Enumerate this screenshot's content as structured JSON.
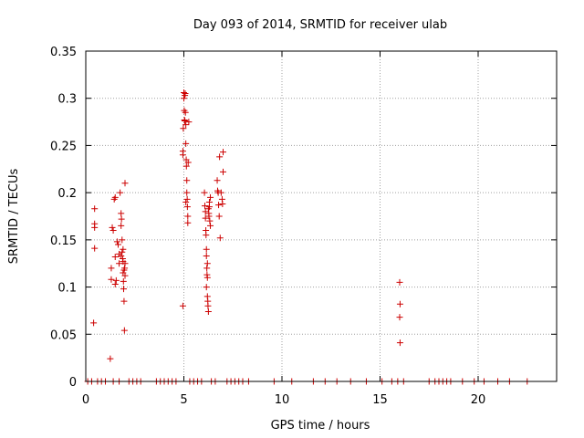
{
  "chart_data": {
    "type": "scatter",
    "title": "Day 093 of 2014, SRMTID for receiver ulab",
    "xlabel": "GPS time / hours",
    "ylabel": "SRMTID / TECUs",
    "xlim": [
      0,
      24
    ],
    "ylim": [
      0,
      0.35
    ],
    "grid": true,
    "marker": "+",
    "colors": {
      "points": "#cc0000",
      "grid": "#a0a0a0",
      "frame": "#000000"
    },
    "x_ticks": [
      {
        "value": 0,
        "label": "0"
      },
      {
        "value": 5,
        "label": "5"
      },
      {
        "value": 10,
        "label": "10"
      },
      {
        "value": 15,
        "label": "15"
      },
      {
        "value": 20,
        "label": "20"
      }
    ],
    "y_ticks": [
      {
        "value": 0,
        "label": "0"
      },
      {
        "value": 0.05,
        "label": "0.05"
      },
      {
        "value": 0.1,
        "label": "0.1"
      },
      {
        "value": 0.15,
        "label": "0.15"
      },
      {
        "value": 0.2,
        "label": "0.2"
      },
      {
        "value": 0.25,
        "label": "0.25"
      },
      {
        "value": 0.3,
        "label": "0.3"
      },
      {
        "value": 0.35,
        "label": "0.35"
      }
    ],
    "points": [
      [
        0.45,
        0.183
      ],
      [
        0.45,
        0.167
      ],
      [
        0.45,
        0.163
      ],
      [
        0.45,
        0.141
      ],
      [
        0.4,
        0.062
      ],
      [
        1.25,
        0.024
      ],
      [
        1.3,
        0.108
      ],
      [
        1.3,
        0.12
      ],
      [
        1.35,
        0.163
      ],
      [
        1.4,
        0.16
      ],
      [
        1.45,
        0.193
      ],
      [
        1.5,
        0.195
      ],
      [
        1.5,
        0.132
      ],
      [
        1.5,
        0.103
      ],
      [
        1.55,
        0.107
      ],
      [
        1.6,
        0.148
      ],
      [
        1.65,
        0.145
      ],
      [
        1.7,
        0.135
      ],
      [
        1.7,
        0.125
      ],
      [
        1.75,
        0.2
      ],
      [
        1.8,
        0.178
      ],
      [
        1.8,
        0.165
      ],
      [
        1.82,
        0.172
      ],
      [
        1.85,
        0.15
      ],
      [
        1.85,
        0.137
      ],
      [
        1.88,
        0.13
      ],
      [
        1.9,
        0.127
      ],
      [
        1.9,
        0.115
      ],
      [
        1.92,
        0.106
      ],
      [
        1.93,
        0.098
      ],
      [
        1.95,
        0.085
      ],
      [
        1.97,
        0.054
      ],
      [
        1.98,
        0.12
      ],
      [
        2.0,
        0.21
      ],
      [
        2.0,
        0.125
      ],
      [
        1.8,
        0.133
      ],
      [
        1.9,
        0.14
      ],
      [
        1.95,
        0.118
      ],
      [
        2.0,
        0.112
      ],
      [
        4.95,
        0.08
      ],
      [
        4.95,
        0.244
      ],
      [
        4.95,
        0.24
      ],
      [
        4.97,
        0.268
      ],
      [
        5.0,
        0.306
      ],
      [
        5.0,
        0.3
      ],
      [
        5.02,
        0.287
      ],
      [
        5.03,
        0.277
      ],
      [
        5.05,
        0.303
      ],
      [
        5.07,
        0.305
      ],
      [
        5.08,
        0.285
      ],
      [
        5.1,
        0.272
      ],
      [
        5.1,
        0.252
      ],
      [
        5.12,
        0.235
      ],
      [
        5.13,
        0.228
      ],
      [
        5.15,
        0.213
      ],
      [
        5.15,
        0.2
      ],
      [
        5.17,
        0.193
      ],
      [
        5.18,
        0.185
      ],
      [
        5.2,
        0.175
      ],
      [
        5.2,
        0.168
      ],
      [
        5.22,
        0.232
      ],
      [
        5.25,
        0.275
      ],
      [
        5.05,
        0.276
      ],
      [
        5.1,
        0.19
      ],
      [
        6.05,
        0.2
      ],
      [
        6.07,
        0.186
      ],
      [
        6.1,
        0.18
      ],
      [
        6.1,
        0.173
      ],
      [
        6.12,
        0.16
      ],
      [
        6.13,
        0.155
      ],
      [
        6.15,
        0.14
      ],
      [
        6.15,
        0.133
      ],
      [
        6.17,
        0.12
      ],
      [
        6.18,
        0.113
      ],
      [
        6.2,
        0.11
      ],
      [
        6.2,
        0.09
      ],
      [
        6.22,
        0.085
      ],
      [
        6.23,
        0.08
      ],
      [
        6.25,
        0.074
      ],
      [
        6.25,
        0.183
      ],
      [
        6.27,
        0.178
      ],
      [
        6.28,
        0.175
      ],
      [
        6.3,
        0.19
      ],
      [
        6.3,
        0.185
      ],
      [
        6.32,
        0.17
      ],
      [
        6.35,
        0.165
      ],
      [
        6.35,
        0.195
      ],
      [
        6.2,
        0.125
      ],
      [
        6.15,
        0.1
      ],
      [
        6.7,
        0.213
      ],
      [
        6.72,
        0.202
      ],
      [
        6.75,
        0.2
      ],
      [
        6.77,
        0.187
      ],
      [
        6.8,
        0.175
      ],
      [
        6.82,
        0.238
      ],
      [
        6.85,
        0.152
      ],
      [
        6.9,
        0.2
      ],
      [
        6.95,
        0.193
      ],
      [
        6.97,
        0.188
      ],
      [
        7.0,
        0.243
      ],
      [
        7.0,
        0.222
      ],
      [
        16.0,
        0.105
      ],
      [
        16.02,
        0.082
      ],
      [
        16.0,
        0.068
      ],
      [
        16.02,
        0.041
      ]
    ],
    "baseline_x": [
      0.1,
      0.3,
      0.6,
      0.8,
      1.0,
      1.4,
      1.7,
      2.2,
      2.4,
      2.6,
      2.8,
      3.6,
      3.8,
      4.0,
      4.2,
      4.4,
      4.6,
      5.3,
      5.5,
      5.7,
      5.9,
      6.4,
      6.6,
      7.2,
      7.4,
      7.6,
      7.8,
      8.0,
      8.3,
      9.6,
      10.5,
      11.6,
      12.2,
      12.8,
      13.5,
      14.3,
      15.1,
      15.6,
      15.9,
      16.2,
      17.5,
      17.8,
      18.0,
      18.2,
      18.4,
      18.6,
      19.2,
      19.8,
      20.3,
      21.0,
      21.6,
      22.5
    ]
  }
}
